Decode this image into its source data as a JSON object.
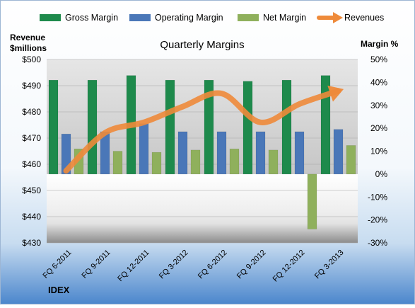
{
  "chart_data": {
    "type": "bar",
    "title": "Quarterly Margins",
    "source_label": "IDEX",
    "left_axis_label_line1": "Revenue",
    "left_axis_label_line2": "$millions",
    "right_axis_label": "Margin %",
    "categories": [
      "FQ 6-2011",
      "FQ 9-2011",
      "FQ 12-2011",
      "FQ 3-2012",
      "FQ 6-2012",
      "FQ 9-2012",
      "FQ 12-2012",
      "FQ 3-2013"
    ],
    "left_axis": {
      "min": 430,
      "max": 500,
      "step": 10,
      "ticks": [
        "$430",
        "$440",
        "$450",
        "$460",
        "$470",
        "$480",
        "$490",
        "$500"
      ]
    },
    "right_axis": {
      "min": -30,
      "max": 50,
      "step": 10,
      "ticks": [
        "-30%",
        "-20%",
        "-10%",
        "0%",
        "10%",
        "20%",
        "30%",
        "40%",
        "50%"
      ]
    },
    "legend_position": "top",
    "series": [
      {
        "name": "Gross Margin",
        "axis": "right",
        "type": "bar",
        "color": "#1e8a4c",
        "values": [
          41,
          41,
          43,
          41,
          41,
          40.5,
          41,
          43
        ]
      },
      {
        "name": "Operating Margin",
        "axis": "right",
        "type": "bar",
        "color": "#4a77b8",
        "values": [
          17.5,
          18.5,
          22,
          18.5,
          18.5,
          18.5,
          18.5,
          19.5
        ]
      },
      {
        "name": "Net Margin",
        "axis": "right",
        "type": "bar",
        "color": "#8fb05c",
        "values": [
          11,
          10,
          9.5,
          10.5,
          11,
          10.5,
          -24,
          12.5
        ]
      },
      {
        "name": "Revenues",
        "axis": "left",
        "type": "line",
        "color": "#ee8a3a",
        "values": [
          457.5,
          472,
          476,
          482,
          487,
          476,
          483,
          488
        ]
      }
    ]
  }
}
